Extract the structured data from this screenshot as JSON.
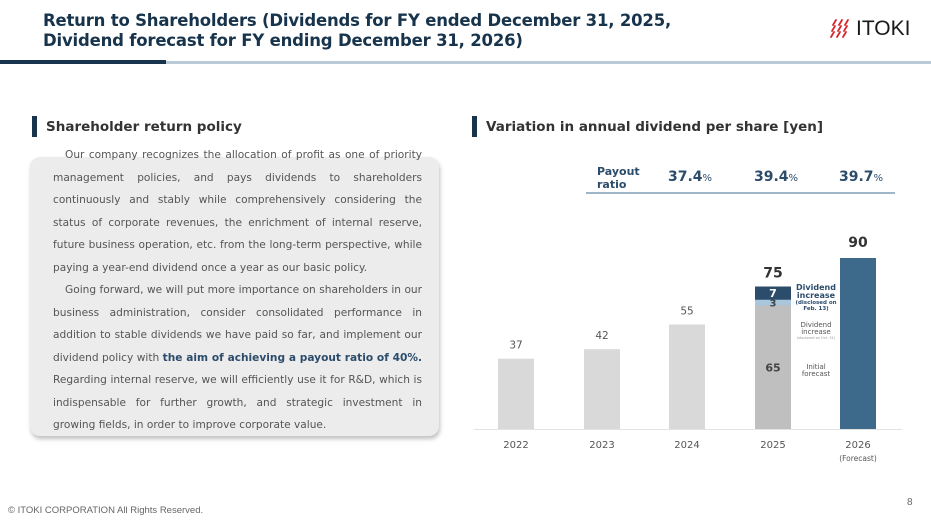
{
  "header": {
    "title_line1": "Return to Shareholders (Dividends for FY ended December 31, 2025,",
    "title_line2": "Dividend forecast for FY ending December 31, 2026)",
    "logo_text": "ITOKI",
    "logo_icon": "itoki-logo-icon"
  },
  "left_section": {
    "heading": "Shareholder return policy",
    "paragraph1": "Our company recognizes the allocation of profit as one of priority management policies, and pays dividends to shareholders continuously and stably while comprehensively considering the status of corporate revenues, the enrichment of internal reserve, future business operation, etc. from the long-term perspective, while paying a year-end dividend once a year as our basic policy.",
    "paragraph2_pre": "Going forward, we will put more importance on shareholders in our business administration, consider consolidated performance in addition to stable dividends we have paid so far, and implement our dividend policy with ",
    "paragraph2_highlight": "the aim of achieving a payout ratio of 40%.",
    "paragraph2_post": " Regarding internal reserve, we will efficiently use it for R&D, which is indispensable for further growth, and strategic investment in growing fields, in order to improve corporate value."
  },
  "right_section": {
    "heading": "Variation in annual dividend per share [yen]",
    "payout": {
      "label_line1": "Payout",
      "label_line2": "ratio",
      "values": [
        {
          "year": "2024",
          "value": "37.4",
          "unit": "%"
        },
        {
          "year": "2025",
          "value": "39.4",
          "unit": "%"
        },
        {
          "year": "2026",
          "value": "39.7",
          "unit": "%"
        }
      ]
    },
    "annotations": {
      "increase2_line1": "Dividend",
      "increase2_line2": "increase",
      "increase2_line3": "(disclosed on",
      "increase2_line4": "Feb. 13)",
      "increase1_line1": "Dividend",
      "increase1_line2": "increase",
      "increase1_line3": "(disclosed on Oct. 31)",
      "initial_line1": "Initial",
      "initial_line2": "forecast"
    }
  },
  "chart_data": {
    "type": "bar",
    "title": "Variation in annual dividend per share [yen]",
    "xlabel": "",
    "ylabel": "yen",
    "categories": [
      "2022",
      "2023",
      "2024",
      "2025",
      "2026"
    ],
    "category_sublabels": [
      "",
      "",
      "",
      "",
      "(Forecast)"
    ],
    "values": [
      37,
      42,
      55,
      75,
      90
    ],
    "stacked_2025": {
      "segments": [
        {
          "name": "Initial forecast",
          "value": 65,
          "color": "#bfbfbf"
        },
        {
          "name": "Dividend increase (disclosed on Oct. 31)",
          "value": 3,
          "color": "#a9c6dd"
        },
        {
          "name": "Dividend increase (disclosed on Feb. 13)",
          "value": 7,
          "color": "#2c4c6b"
        }
      ]
    },
    "colors": {
      "past": "#d9d9d9",
      "forecast": "#3d6a8a"
    },
    "ylim": [
      0,
      90
    ],
    "grid": false,
    "legend": "none"
  },
  "footer": {
    "copyright": "© ITOKI CORPORATION All Rights Reserved.",
    "page_number": "8"
  }
}
